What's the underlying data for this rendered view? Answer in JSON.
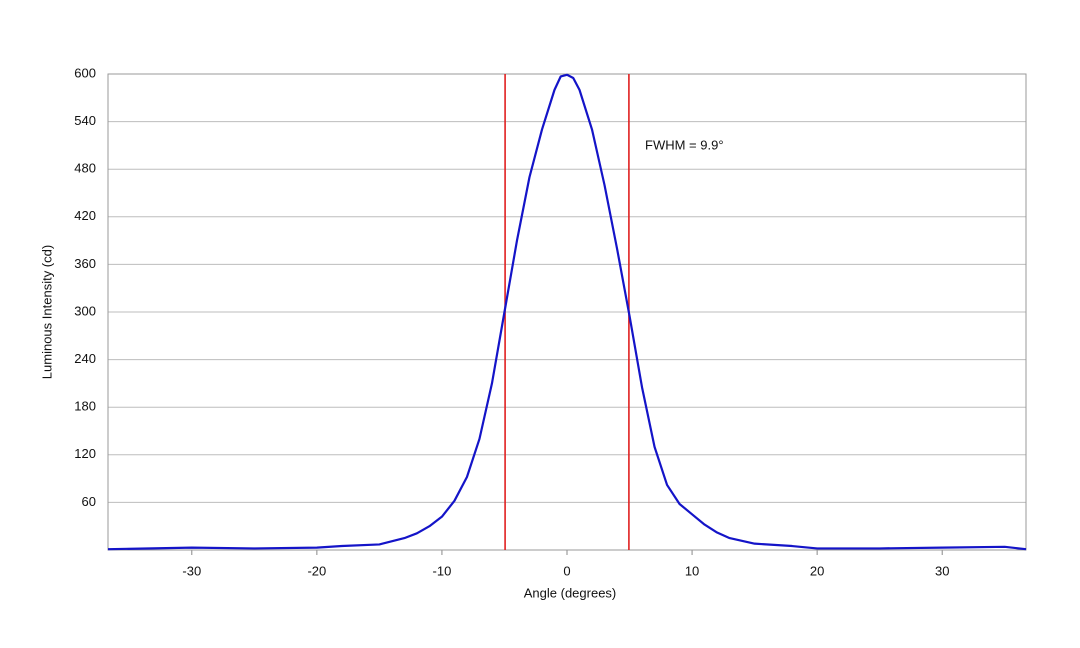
{
  "chart_data": {
    "type": "line",
    "x_label": "Angle (degrees)",
    "y_label": "Luminous Intensity (cd)",
    "annotation": "FWHM = 9.9°",
    "x": [
      -36.7,
      -30,
      -25,
      -20,
      -18,
      -15,
      -13,
      -12,
      -11,
      -10,
      -9,
      -8,
      -7,
      -6,
      -5,
      -4,
      -3,
      -2,
      -1,
      -0.5,
      0,
      0.5,
      1,
      2,
      3,
      4,
      5,
      6,
      7,
      8,
      9,
      10,
      11,
      12,
      13,
      15,
      18,
      20,
      25,
      30,
      35,
      36.7
    ],
    "series": [
      {
        "color": "#1414c8",
        "values": [
          1,
          3,
          2,
          3,
          5,
          7,
          15,
          21,
          30,
          42,
          62,
          92,
          140,
          210,
          300,
          390,
          470,
          530,
          580,
          597,
          599,
          595,
          580,
          530,
          460,
          380,
          295,
          205,
          130,
          82,
          58,
          45,
          32,
          22,
          15,
          8,
          5,
          2,
          2,
          3,
          4,
          1
        ]
      }
    ],
    "vlines": [
      -4.95,
      4.95
    ],
    "vline_color": "#e02020",
    "xlim": [
      -36.7,
      36.7
    ],
    "xticks": [
      -30,
      -20,
      -10,
      0,
      10,
      20,
      30
    ],
    "ylim": [
      0,
      600
    ],
    "yticks": [
      60,
      120,
      180,
      240,
      300,
      360,
      420,
      480,
      540,
      600
    ],
    "grid": true
  }
}
